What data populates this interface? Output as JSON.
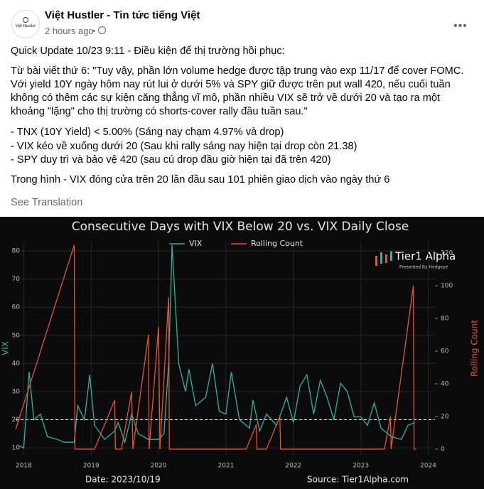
{
  "post": {
    "author": "Việt Hustler - Tin tức tiếng Việt",
    "time": "2 hours ago",
    "avatar_text": "Việt Hustler",
    "paragraphs": [
      "Quick Update 10/23 9:11 - Điều kiện để thị trường hồi phục:",
      "Từ bài viết thứ 6: \"Tuy vậy, phần lớn volume hedge được tập trung vào exp 11/17 để cover FOMC. Với yield 10Y ngày hôm nay rút lui ở dưới 5% và SPY giữ được trên put wall 420, nếu cuối tuần không có thêm các sự kiện căng thẳng vĩ mô, phần nhiều VIX sẽ trở về dưới 20 và tạo ra một khoảng \"lặng\" cho thị trường có shorts-cover rally đầu tuần sau.\""
    ],
    "bullets": [
      "- TNX (10Y Yield) < 5.00% (Sáng nay chạm 4.97% và drop)",
      "- VIX kéo về xuống dưới 20 (Sau khi rally sáng nay hiện tại drop còn 21.38)",
      "- SPY duy trì và bảo vệ 420 (sau cú drop đầu giờ hiện tại đã trên 420)"
    ],
    "closing": "Trong hình - VIX đóng cửa trên 20 lần đầu sau 101 phiên giao dịch vào ngày thứ 6",
    "see_translation": "See Translation"
  },
  "chart_data": {
    "type": "line",
    "title": "Consecutive Days with VIX Below 20 vs. VIX Daily Close",
    "ylabel": "VIX",
    "y2label": "Rolling Count",
    "logo": "Tier1 Alpha",
    "logo_sub": "Presented By Hedgeye",
    "date_note": "Date: 2023/10/19",
    "source": "Source: Tier1Alpha.com",
    "hline": 20,
    "grid": true,
    "xlim": [
      2017.88,
      2024.1
    ],
    "xticks": [
      2018,
      2019,
      2020,
      2021,
      2022,
      2023,
      2024
    ],
    "ylim": [
      7.5,
      83.3
    ],
    "yticks": [
      10,
      20,
      30,
      40,
      50,
      60,
      70,
      80
    ],
    "y2lim": [
      -3.5,
      127
    ],
    "y2ticks": [
      0,
      20,
      40,
      60,
      80,
      100,
      120
    ],
    "series": [
      {
        "name": "VIX",
        "color": "#2bb3a6",
        "axis": "y",
        "x": [
          2017.9,
          2018.0,
          2018.08,
          2018.15,
          2018.25,
          2018.35,
          2018.5,
          2018.6,
          2018.75,
          2018.8,
          2018.9,
          2018.98,
          2019.05,
          2019.2,
          2019.35,
          2019.4,
          2019.5,
          2019.6,
          2019.7,
          2019.85,
          2020.0,
          2020.08,
          2020.15,
          2020.2,
          2020.3,
          2020.4,
          2020.45,
          2020.55,
          2020.7,
          2020.8,
          2020.9,
          2021.0,
          2021.08,
          2021.2,
          2021.35,
          2021.4,
          2021.5,
          2021.6,
          2021.75,
          2021.9,
          2022.0,
          2022.1,
          2022.2,
          2022.3,
          2022.4,
          2022.5,
          2022.6,
          2022.7,
          2022.8,
          2022.9,
          2023.0,
          2023.1,
          2023.2,
          2023.3,
          2023.45,
          2023.6,
          2023.7,
          2023.8
        ],
        "values": [
          11,
          10,
          37,
          20,
          22,
          14,
          13,
          12,
          12,
          25,
          20,
          36,
          18,
          13,
          16,
          19,
          12,
          22,
          15,
          13,
          13,
          15,
          40,
          82,
          40,
          30,
          38,
          25,
          28,
          40,
          23,
          22,
          37,
          20,
          17,
          27,
          16,
          22,
          18,
          28,
          19,
          32,
          36,
          22,
          34,
          28,
          20,
          33,
          30,
          21,
          21,
          18,
          26,
          17,
          14,
          13,
          18,
          19
        ]
      },
      {
        "name": "Rolling Count",
        "color": "#e4572e",
        "axis": "y2",
        "x": [
          2017.88,
          2018.75,
          2018.76,
          2019.05,
          2019.35,
          2019.36,
          2019.45,
          2019.6,
          2019.62,
          2019.85,
          2019.86,
          2020.0,
          2020.02,
          2020.15,
          2020.16,
          2021.3,
          2021.45,
          2021.46,
          2021.6,
          2021.8,
          2021.81,
          2023.35,
          2023.44,
          2023.45,
          2023.78,
          2023.79,
          2023.82
        ],
        "values": [
          12,
          125,
          0,
          0,
          30,
          0,
          0,
          35,
          0,
          70,
          0,
          75,
          0,
          93,
          0,
          0,
          15,
          0,
          0,
          20,
          0,
          0,
          20,
          0,
          100,
          0,
          0
        ]
      }
    ]
  }
}
